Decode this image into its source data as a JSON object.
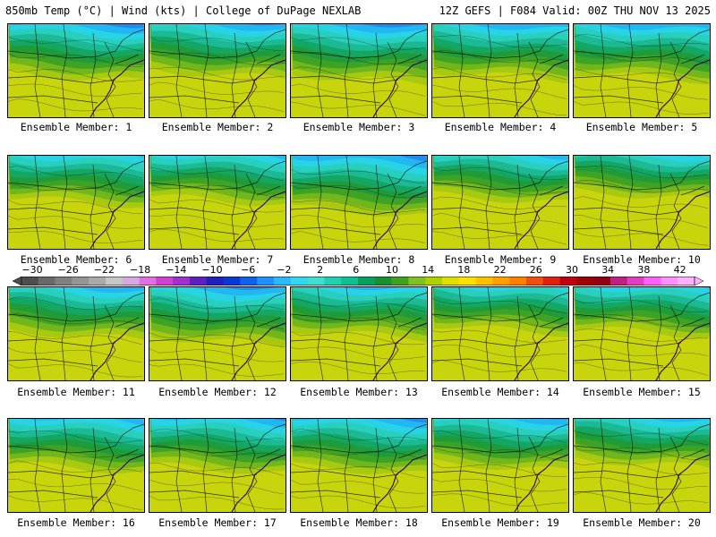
{
  "header": {
    "left_title": "850mb Temp (°C) | Wind (kts) | College of DuPage NEXLAB",
    "right_title": "12Z GEFS | F084 Valid: 00Z THU NOV 13 2025"
  },
  "members": [
    {
      "label": "Ensemble Member: 1",
      "cold_depth": 0.45
    },
    {
      "label": "Ensemble Member: 2",
      "cold_depth": 0.4
    },
    {
      "label": "Ensemble Member: 3",
      "cold_depth": 0.48
    },
    {
      "label": "Ensemble Member: 4",
      "cold_depth": 0.42
    },
    {
      "label": "Ensemble Member: 5",
      "cold_depth": 0.44
    },
    {
      "label": "Ensemble Member: 6",
      "cold_depth": 0.32
    },
    {
      "label": "Ensemble Member: 7",
      "cold_depth": 0.3
    },
    {
      "label": "Ensemble Member: 8",
      "cold_depth": 0.5
    },
    {
      "label": "Ensemble Member: 9",
      "cold_depth": 0.28
    },
    {
      "label": "Ensemble Member: 10",
      "cold_depth": 0.22
    },
    {
      "label": "Ensemble Member: 11",
      "cold_depth": 0.36
    },
    {
      "label": "Ensemble Member: 12",
      "cold_depth": 0.46
    },
    {
      "label": "Ensemble Member: 13",
      "cold_depth": 0.34
    },
    {
      "label": "Ensemble Member: 14",
      "cold_depth": 0.26
    },
    {
      "label": "Ensemble Member: 15",
      "cold_depth": 0.3
    },
    {
      "label": "Ensemble Member: 16",
      "cold_depth": 0.38
    },
    {
      "label": "Ensemble Member: 17",
      "cold_depth": 0.4
    },
    {
      "label": "Ensemble Member: 18",
      "cold_depth": 0.42
    },
    {
      "label": "Ensemble Member: 19",
      "cold_depth": 0.36
    },
    {
      "label": "Ensemble Member: 20",
      "cold_depth": 0.3
    }
  ],
  "colorbar": {
    "tick_labels": [
      "−30",
      "−26",
      "−22",
      "−18",
      "−14",
      "−10",
      "−6",
      "−2",
      "2",
      "6",
      "10",
      "14",
      "18",
      "22",
      "26",
      "30",
      "34",
      "38",
      "42"
    ],
    "colors": [
      "#4e4e4e",
      "#6a6a6a",
      "#808080",
      "#959595",
      "#aaaaaa",
      "#c6c6c6",
      "#d8a8e0",
      "#e070e0",
      "#d040d0",
      "#a030d0",
      "#6020c0",
      "#2020c0",
      "#0a37d8",
      "#1060f0",
      "#1e90ff",
      "#2ab8ff",
      "#30d8f0",
      "#40e0d0",
      "#20d0b0",
      "#10c090",
      "#0aa060",
      "#189030",
      "#40a020",
      "#80c020",
      "#b0d000",
      "#e0e000",
      "#ffe000",
      "#ffc000",
      "#ffa000",
      "#ff8000",
      "#f05010",
      "#e02010",
      "#c00010",
      "#a00000",
      "#900010",
      "#c02080",
      "#e040c0",
      "#ff60ff",
      "#ff90ff",
      "#ffb0ff"
    ]
  }
}
